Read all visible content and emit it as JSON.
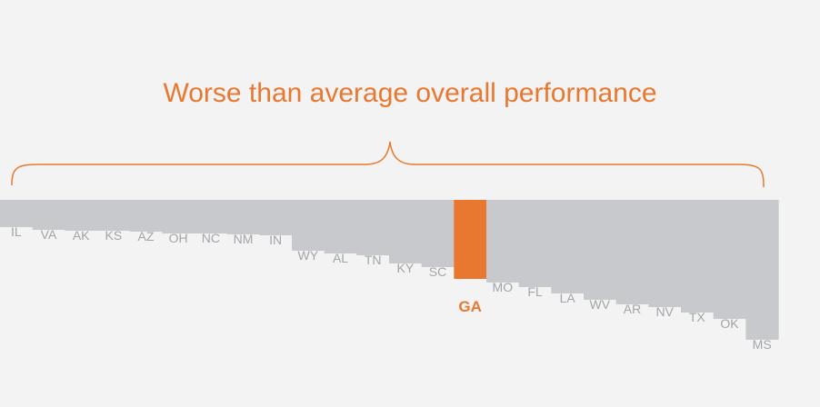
{
  "headline": "Worse than average overall performance",
  "colors": {
    "accent": "#e8782f",
    "bar": "#c8c9cc",
    "label": "#a2a4a8",
    "background": "#f3f3f4"
  },
  "chart_data": {
    "type": "bar",
    "title": "",
    "orientation": "descending-from-top",
    "categories": [
      "IL",
      "VA",
      "AK",
      "KS",
      "AZ",
      "OH",
      "NC",
      "NM",
      "IN",
      "WY",
      "AL",
      "TN",
      "KY",
      "SC",
      "GA",
      "MO",
      "FL",
      "LA",
      "WV",
      "AR",
      "NV",
      "TX",
      "OK",
      "MS"
    ],
    "values": [
      30,
      33,
      34,
      34,
      35,
      37,
      37,
      38,
      39,
      56,
      59,
      61,
      70,
      74,
      87,
      91,
      96,
      103,
      110,
      115,
      118,
      124,
      131,
      154
    ],
    "highlight": "GA",
    "grid": false,
    "legend": "none"
  }
}
